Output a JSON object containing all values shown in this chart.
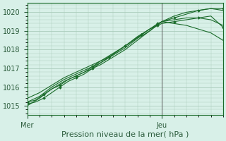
{
  "title": "",
  "xlabel": "Pression niveau de la mer( hPa )",
  "ylabel": "",
  "bg_color": "#d8f0e8",
  "grid_color": "#aaccbb",
  "line_color": "#1a6b2a",
  "marker_color": "#1a6b2a",
  "ylim": [
    1014.5,
    1020.5
  ],
  "xlim": [
    0,
    48
  ],
  "vline_x": 33,
  "series": [
    {
      "x": [
        0,
        2,
        4,
        6,
        8,
        10,
        12,
        14,
        16,
        18,
        20,
        22,
        24,
        26,
        28,
        30,
        32,
        33,
        36,
        39,
        42,
        45,
        48
      ],
      "y": [
        1015.1,
        1015.2,
        1015.4,
        1015.7,
        1016.0,
        1016.3,
        1016.5,
        1016.7,
        1017.0,
        1017.3,
        1017.6,
        1017.9,
        1018.2,
        1018.5,
        1018.8,
        1019.1,
        1019.4,
        1019.5,
        1019.7,
        1019.9,
        1020.1,
        1020.2,
        1020.2
      ],
      "has_marker": true
    },
    {
      "x": [
        0,
        2,
        4,
        6,
        8,
        10,
        12,
        14,
        16,
        18,
        20,
        22,
        24,
        26,
        28,
        30,
        32,
        33,
        36,
        39,
        42,
        45,
        48
      ],
      "y": [
        1015.2,
        1015.3,
        1015.6,
        1015.9,
        1016.1,
        1016.4,
        1016.6,
        1016.8,
        1017.1,
        1017.4,
        1017.6,
        1017.9,
        1018.2,
        1018.5,
        1018.8,
        1019.1,
        1019.3,
        1019.4,
        1019.5,
        1019.6,
        1019.7,
        1019.8,
        1019.2
      ],
      "has_marker": true
    },
    {
      "x": [
        0,
        3,
        6,
        9,
        12,
        15,
        18,
        21,
        24,
        27,
        30,
        33,
        36,
        39,
        42,
        45,
        48
      ],
      "y": [
        1015.0,
        1015.4,
        1015.9,
        1016.3,
        1016.6,
        1016.9,
        1017.2,
        1017.6,
        1018.0,
        1018.5,
        1019.0,
        1019.5,
        1019.8,
        1020.0,
        1020.1,
        1020.2,
        1020.1
      ],
      "has_marker": false
    },
    {
      "x": [
        0,
        3,
        6,
        9,
        12,
        15,
        18,
        21,
        24,
        27,
        30,
        33,
        36,
        39,
        42,
        45,
        48
      ],
      "y": [
        1015.2,
        1015.5,
        1016.0,
        1016.4,
        1016.7,
        1017.0,
        1017.3,
        1017.7,
        1018.1,
        1018.6,
        1019.0,
        1019.5,
        1019.6,
        1019.7,
        1019.7,
        1019.6,
        1019.3
      ],
      "has_marker": false
    },
    {
      "x": [
        0,
        3,
        6,
        9,
        12,
        15,
        18,
        21,
        24,
        27,
        30,
        33,
        36,
        39,
        42,
        45,
        48
      ],
      "y": [
        1015.4,
        1015.7,
        1016.1,
        1016.5,
        1016.8,
        1017.1,
        1017.4,
        1017.8,
        1018.2,
        1018.7,
        1019.1,
        1019.5,
        1019.4,
        1019.3,
        1019.1,
        1018.9,
        1018.5
      ],
      "has_marker": false
    }
  ]
}
